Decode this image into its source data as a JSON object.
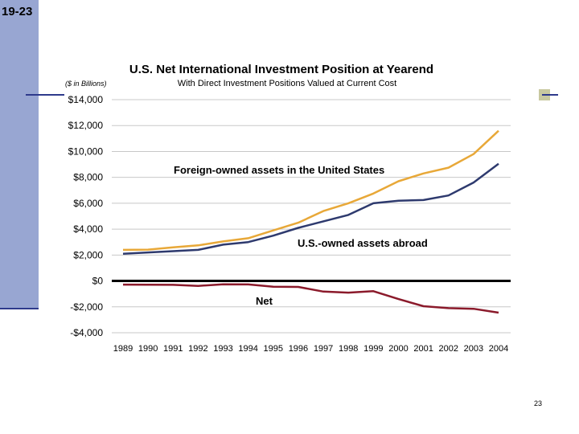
{
  "slide": {
    "label": "19-23",
    "page_number": "23"
  },
  "chart_data": {
    "type": "line",
    "title": "U.S. Net International Investment Position at Yearend",
    "subtitle": "With Direct Investment Positions Valued at Current Cost",
    "ylabel": "($ in Billions)",
    "xlabel": "",
    "ylim": [
      -4000,
      14000
    ],
    "yticks": [
      14000,
      12000,
      10000,
      8000,
      6000,
      4000,
      2000,
      0,
      -2000,
      -4000
    ],
    "ytick_labels": [
      "$14,000",
      "$12,000",
      "$10,000",
      "$8,000",
      "$6,000",
      "$4,000",
      "$2,000",
      "$0",
      "-$2,000",
      "-$4,000"
    ],
    "categories": [
      "1989",
      "1990",
      "1991",
      "1992",
      "1993",
      "1994",
      "1995",
      "1996",
      "1997",
      "1998",
      "1999",
      "2000",
      "2001",
      "2002",
      "2003",
      "2004"
    ],
    "grid": true,
    "series": [
      {
        "name": "Foreign-owned assets in the United States",
        "color": "#e8a838",
        "values": [
          2400,
          2420,
          2600,
          2750,
          3050,
          3300,
          3900,
          4500,
          5400,
          6000,
          6750,
          7700,
          8300,
          8750,
          9800,
          11600
        ]
      },
      {
        "name": "U.S.-owned assets abroad",
        "color": "#2e3a6e",
        "values": [
          2100,
          2200,
          2300,
          2400,
          2800,
          3000,
          3500,
          4100,
          4600,
          5100,
          6000,
          6200,
          6250,
          6600,
          7600,
          9050
        ]
      },
      {
        "name": "Net",
        "color": "#8b1a2b",
        "values": [
          -280,
          -290,
          -300,
          -380,
          -260,
          -270,
          -450,
          -460,
          -820,
          -900,
          -790,
          -1400,
          -1950,
          -2100,
          -2150,
          -2450
        ]
      }
    ],
    "annotations": [
      {
        "text": "Foreign-owned assets in the United States"
      },
      {
        "text": "U.S.-owned assets abroad"
      },
      {
        "text": "Net"
      }
    ]
  }
}
